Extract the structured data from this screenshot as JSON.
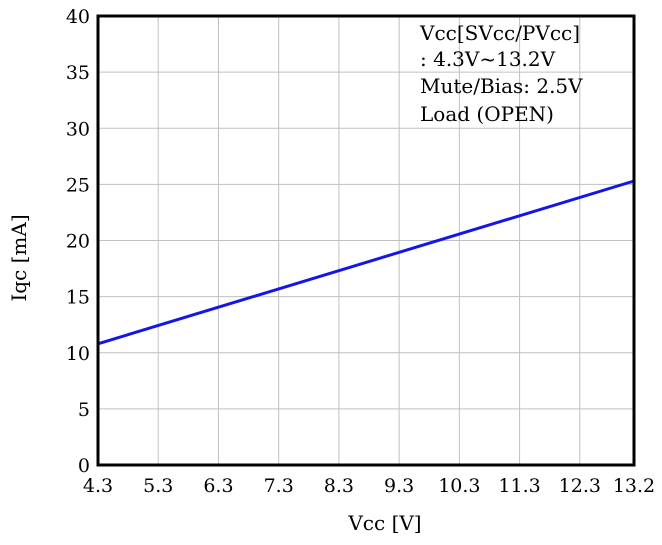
{
  "chart_data": {
    "type": "line",
    "title": "",
    "xlabel": "Vcc [V]",
    "ylabel": "Iqc [mA]",
    "x_ticks": [
      "4.3",
      "5.3",
      "6.3",
      "7.3",
      "8.3",
      "9.3",
      "10.3",
      "11.3",
      "12.3",
      "13.2"
    ],
    "x_tick_values": [
      4.3,
      5.3,
      6.3,
      7.3,
      8.3,
      9.3,
      10.3,
      11.3,
      12.3,
      13.2
    ],
    "y_ticks": [
      "0",
      "5",
      "10",
      "15",
      "20",
      "25",
      "30",
      "35",
      "40"
    ],
    "y_tick_values": [
      0,
      5,
      10,
      15,
      20,
      25,
      30,
      35,
      40
    ],
    "xlim": [
      4.3,
      13.2
    ],
    "ylim": [
      0,
      40
    ],
    "grid": true,
    "annotation": {
      "lines": [
        "Vcc[SVcc/PVcc]",
        ": 4.3V~13.2V",
        "Mute/Bias: 2.5V",
        "Load (OPEN)"
      ],
      "placement": "top-right"
    },
    "series": [
      {
        "color": "#1515e8",
        "x": [
          4.3,
          13.2
        ],
        "y": [
          10.8,
          25.3
        ]
      }
    ]
  },
  "colors": {
    "series": "#1515e8",
    "grid": "#c0c0c0",
    "axis": "#000000"
  }
}
